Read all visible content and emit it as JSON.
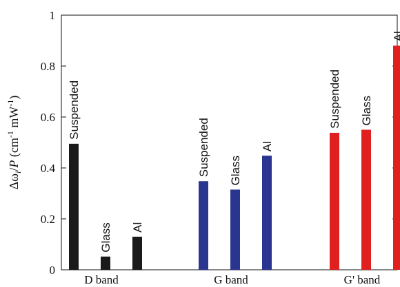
{
  "chart_data": {
    "type": "bar",
    "ylabel": {
      "prefix": "Δω",
      "sub": "i",
      "slash": "/",
      "P": "P",
      "units_a": " (cm",
      "sup1": "-1",
      "units_b": " mW",
      "sup2": "-1",
      "units_c": ")"
    },
    "ylim": [
      0,
      1
    ],
    "yticks": [
      {
        "value": 0,
        "label": "0"
      },
      {
        "value": 0.2,
        "label": "0.2"
      },
      {
        "value": 0.4,
        "label": "0.4"
      },
      {
        "value": 0.6,
        "label": "0.6"
      },
      {
        "value": 0.8,
        "label": "0.8"
      },
      {
        "value": 1,
        "label": "1"
      }
    ],
    "groups": [
      {
        "label": "D band",
        "color": "#1a1a1a",
        "bars": [
          {
            "label": "Suspended",
            "value": 0.495
          },
          {
            "label": "Glass",
            "value": 0.052
          },
          {
            "label": "Al",
            "value": 0.13
          }
        ]
      },
      {
        "label": "G band",
        "color": "#2a3590",
        "bars": [
          {
            "label": "Suspended",
            "value": 0.348
          },
          {
            "label": "Glass",
            "value": 0.315
          },
          {
            "label": "Al",
            "value": 0.448
          }
        ]
      },
      {
        "label": "G' band",
        "color": "#e0201e",
        "bars": [
          {
            "label": "Suspended",
            "value": 0.538
          },
          {
            "label": "Glass",
            "value": 0.55
          },
          {
            "label": "Al",
            "value": 0.88
          }
        ]
      }
    ],
    "grid": false,
    "legend": "none"
  }
}
